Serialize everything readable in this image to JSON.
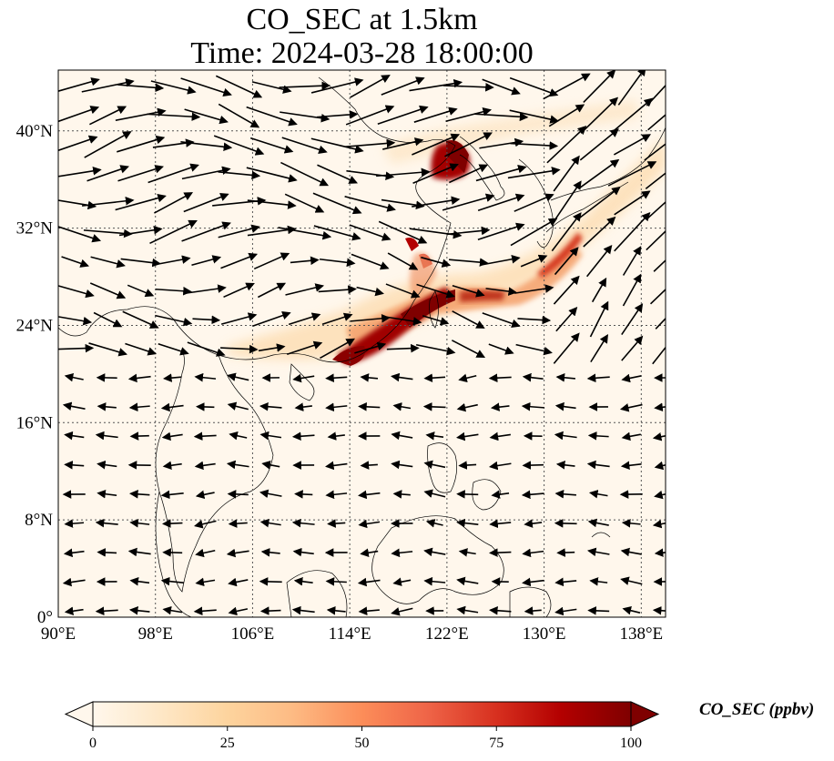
{
  "title": {
    "line1": "CO_SEC at 1.5km",
    "line2": "Time: 2024-03-28 18:00:00"
  },
  "map": {
    "projection": "PlateCarree",
    "lon_range": [
      90,
      140
    ],
    "lat_range": [
      0,
      45
    ],
    "x_ticks": [
      {
        "value": 90,
        "label": "90°E"
      },
      {
        "value": 98,
        "label": "98°E"
      },
      {
        "value": 106,
        "label": "106°E"
      },
      {
        "value": 114,
        "label": "114°E"
      },
      {
        "value": 122,
        "label": "122°E"
      },
      {
        "value": 130,
        "label": "130°E"
      },
      {
        "value": 138,
        "label": "138°E"
      }
    ],
    "y_ticks": [
      {
        "value": 0,
        "label": "0°"
      },
      {
        "value": 8,
        "label": "8°N"
      },
      {
        "value": 16,
        "label": "16°N"
      },
      {
        "value": 24,
        "label": "24°N"
      },
      {
        "value": 32,
        "label": "32°N"
      },
      {
        "value": 40,
        "label": "40°N"
      }
    ],
    "gridlines": true,
    "coastlines": true,
    "wind_vectors": true
  },
  "colorbar": {
    "label": "CO_SEC (ppbv)",
    "colormap": "OrRd",
    "range": [
      0,
      100
    ],
    "extend": "both",
    "ticks": [
      {
        "value": 0,
        "label": "0"
      },
      {
        "value": 25,
        "label": "25"
      },
      {
        "value": 50,
        "label": "50"
      },
      {
        "value": 75,
        "label": "75"
      },
      {
        "value": 100,
        "label": "100"
      }
    ]
  },
  "colors": {
    "low": "#fff7ec",
    "mid": "#fdbb84",
    "high": "#7f0000"
  }
}
